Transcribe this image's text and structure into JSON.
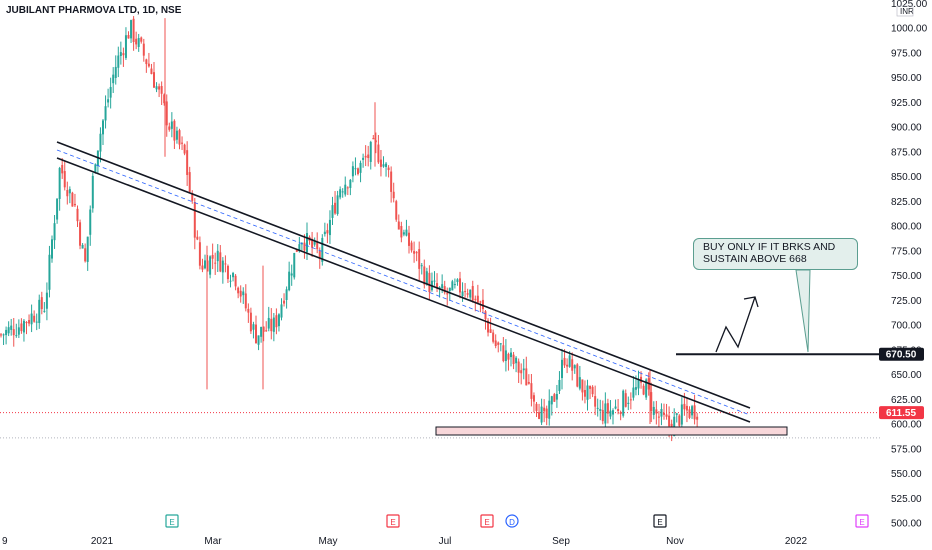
{
  "header": {
    "title": "JUBILANT PHARMOVA LTD, 1D, NSE"
  },
  "price_axis": {
    "currency": "INR",
    "ticks": [
      "1025.00",
      "1000.00",
      "975.00",
      "950.00",
      "925.00",
      "900.00",
      "875.00",
      "850.00",
      "825.00",
      "800.00",
      "775.00",
      "750.00",
      "725.00",
      "700.00",
      "675.00",
      "650.00",
      "625.00",
      "600.00",
      "575.00",
      "550.00",
      "525.00",
      "500.00"
    ],
    "tick_values": [
      1025,
      1000,
      975,
      950,
      925,
      900,
      875,
      850,
      825,
      800,
      775,
      750,
      725,
      700,
      675,
      650,
      625,
      600,
      575,
      550,
      525,
      500
    ]
  },
  "time_axis": {
    "labels": [
      "9",
      "2021",
      "Mar",
      "May",
      "Jul",
      "Sep",
      "Nov",
      "2022"
    ]
  },
  "price_tags": [
    {
      "label": "670.50",
      "value": 670.5,
      "color": "#131722"
    },
    {
      "label": "611.55",
      "value": 611.55,
      "color": "#f23645"
    }
  ],
  "event_markers": [
    {
      "label": "E",
      "color": "#26a69a"
    },
    {
      "label": "E",
      "color": "#f23645"
    },
    {
      "label": "E",
      "color": "#f23645"
    },
    {
      "label": "D",
      "color": "#2962ff"
    },
    {
      "label": "E",
      "color": "#131722"
    },
    {
      "label": "E",
      "color": "#e040fb"
    }
  ],
  "annotation": {
    "line1": "BUY ONLY IF IT BRKS AND",
    "line2": "SUSTAIN ABOVE 668"
  },
  "chart_data": {
    "type": "candlestick",
    "title": "JUBILANT PHARMOVA LTD, 1D, NSE",
    "ylim": [
      500,
      1025
    ],
    "up_color": "#26a69a",
    "down_color": "#ef5350",
    "series": [
      {
        "name": "close_path",
        "x": [
          "2020-12-20",
          "2021-01-05",
          "2021-01-15",
          "2021-02-05",
          "2021-02-20",
          "2021-03-05",
          "2021-03-25",
          "2021-04-10",
          "2021-05-05",
          "2021-05-15",
          "2021-06-01",
          "2021-06-15",
          "2021-07-10",
          "2021-08-05",
          "2021-08-25",
          "2021-09-10",
          "2021-09-30",
          "2021-10-25",
          "2021-11-05",
          "2021-11-15"
        ],
        "values": [
          690,
          860,
          880,
          965,
          1000,
          870,
          760,
          680,
          760,
          850,
          880,
          780,
          730,
          670,
          605,
          660,
          610,
          625,
          600,
          612
        ]
      }
    ],
    "key_levels": {
      "horizontal_resistance": 670.5,
      "support_zone": [
        588,
        598
      ],
      "last_price": 611.55
    }
  }
}
